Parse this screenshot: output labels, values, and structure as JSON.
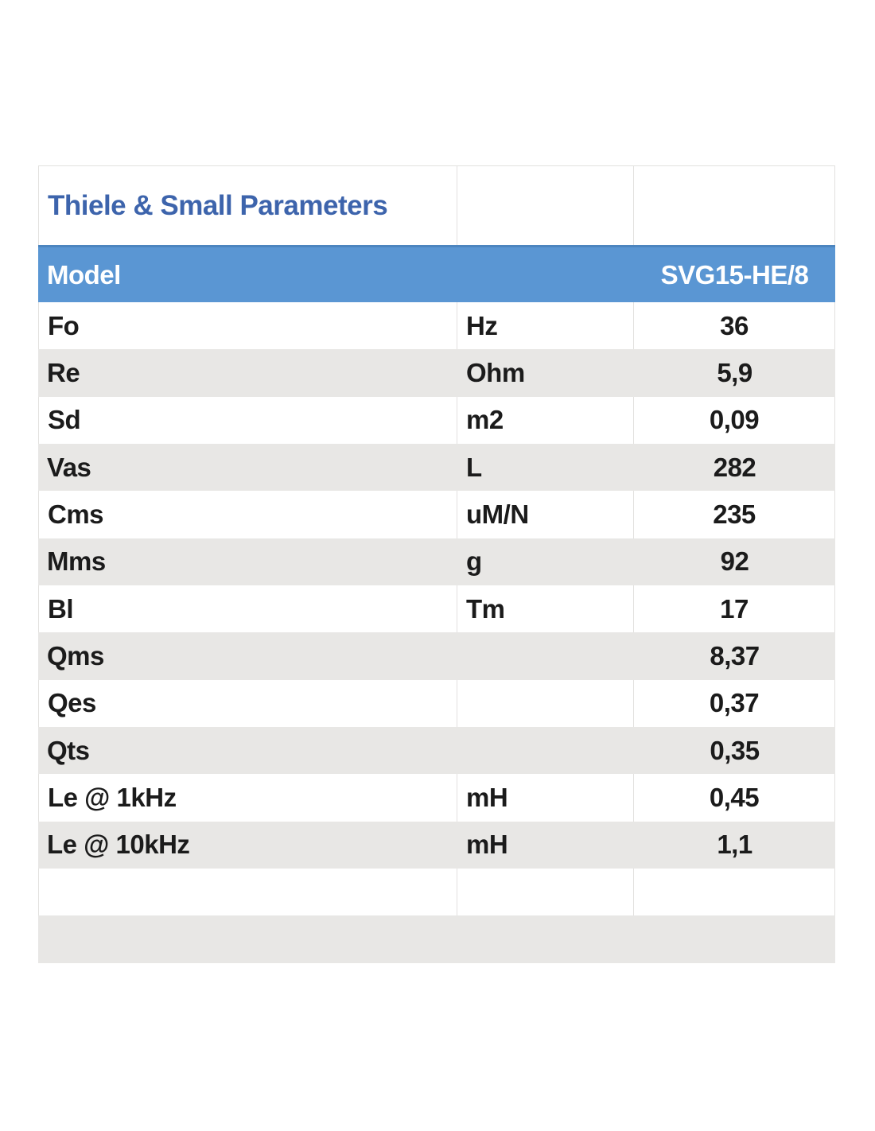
{
  "table": {
    "title": "Thiele & Small Parameters",
    "model_row": {
      "label": "Model",
      "value": "SVG15-HE/8"
    },
    "columns": [
      "parameter",
      "unit",
      "value"
    ],
    "rows": [
      {
        "parameter": "Fo",
        "unit": "Hz",
        "value": "36"
      },
      {
        "parameter": "Re",
        "unit": "Ohm",
        "value": "5,9"
      },
      {
        "parameter": "Sd",
        "unit": "m2",
        "value": "0,09"
      },
      {
        "parameter": "Vas",
        "unit": "L",
        "value": "282"
      },
      {
        "parameter": "Cms",
        "unit": "uM/N",
        "value": "235"
      },
      {
        "parameter": "Mms",
        "unit": "g",
        "value": "92"
      },
      {
        "parameter": "Bl",
        "unit": "Tm",
        "value": "17"
      },
      {
        "parameter": "Qms",
        "unit": "",
        "value": "8,37"
      },
      {
        "parameter": "Qes",
        "unit": "",
        "value": "0,37"
      },
      {
        "parameter": "Qts",
        "unit": "",
        "value": "0,35"
      },
      {
        "parameter": "Le @ 1kHz",
        "unit": "mH",
        "value": "0,45"
      },
      {
        "parameter": "Le @ 10kHz",
        "unit": "mH",
        "value": "1,1"
      }
    ],
    "trailing_empty_rows": 2,
    "colors": {
      "model_row_background": "#5a96d3",
      "model_row_top_edge": "#4c85bf",
      "title_text": "#3d64ac",
      "alternate_row_background": "#e8e7e5",
      "grid_border": "#e2e1df",
      "data_text": "#1b1b1b",
      "model_row_text": "#ffffff"
    }
  }
}
